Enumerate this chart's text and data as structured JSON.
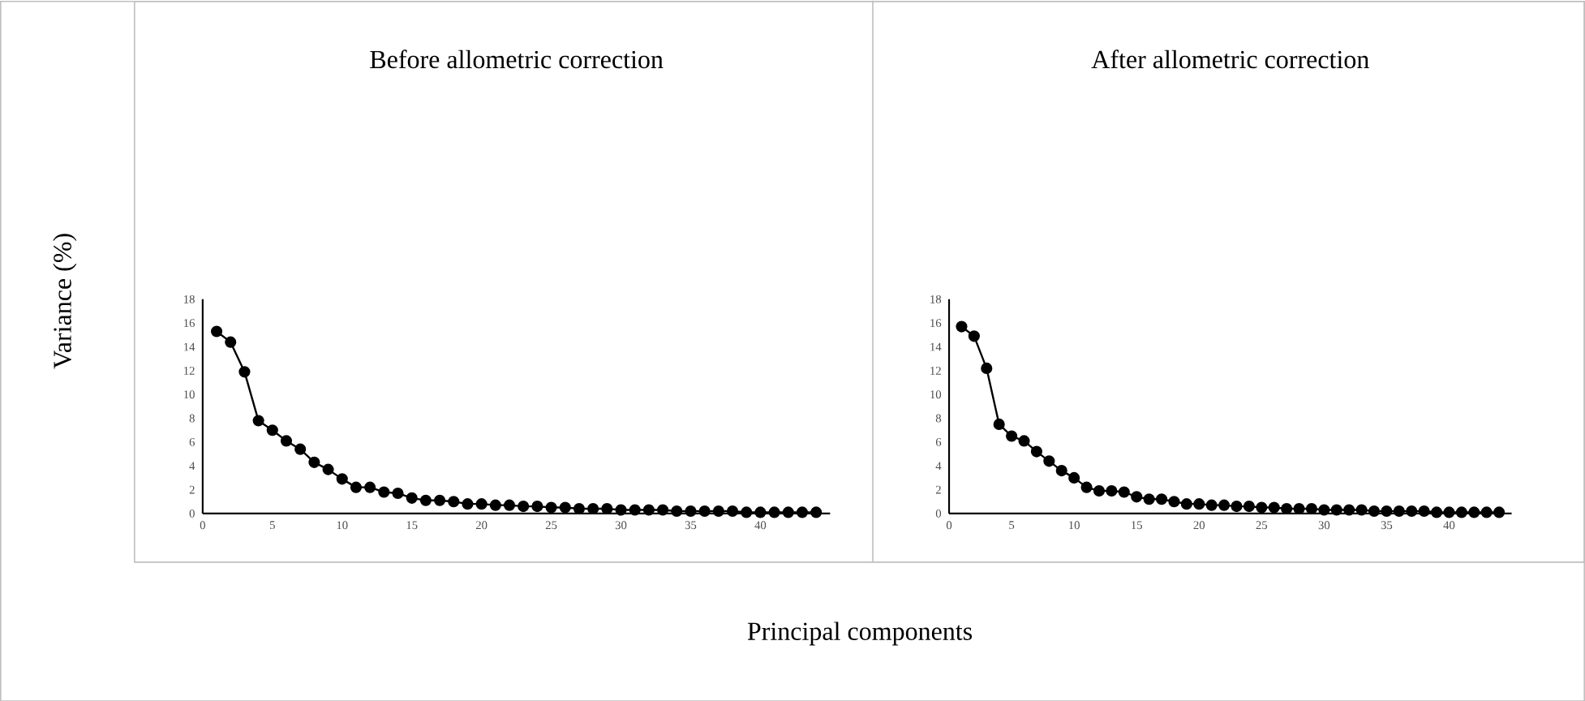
{
  "chart_data": [
    {
      "type": "line",
      "title": "Before allometric correction",
      "ylabel": "Variance (%)",
      "xlabel": "Principal components",
      "x": [
        1,
        2,
        3,
        4,
        5,
        6,
        7,
        8,
        9,
        10,
        11,
        12,
        13,
        14,
        15,
        16,
        17,
        18,
        19,
        20,
        21,
        22,
        23,
        24,
        25,
        26,
        27,
        28,
        29,
        30,
        31,
        32,
        33,
        34,
        35,
        36,
        37,
        38,
        39,
        40,
        41,
        42,
        43,
        44
      ],
      "series": [
        {
          "color": "#000000",
          "values": [
            15.3,
            14.4,
            11.9,
            7.8,
            7.0,
            6.1,
            5.4,
            4.3,
            3.7,
            2.9,
            2.2,
            2.2,
            1.8,
            1.7,
            1.3,
            1.1,
            1.1,
            1.0,
            0.8,
            0.8,
            0.7,
            0.7,
            0.6,
            0.6,
            0.5,
            0.5,
            0.4,
            0.4,
            0.4,
            0.3,
            0.3,
            0.3,
            0.3,
            0.2,
            0.2,
            0.2,
            0.2,
            0.2,
            0.1,
            0.1,
            0.1,
            0.1,
            0.1,
            0.1
          ]
        }
      ],
      "xlim": [
        0,
        45
      ],
      "xticks": [
        0,
        5,
        10,
        15,
        20,
        25,
        30,
        35,
        40
      ],
      "ylim": [
        0,
        18
      ],
      "yticks": [
        0,
        2,
        4,
        6,
        8,
        10,
        12,
        14,
        16,
        18
      ],
      "grid": false,
      "marker": "circle",
      "line_style": "solid"
    },
    {
      "type": "line",
      "title": "After allometric correction",
      "x": [
        1,
        2,
        3,
        4,
        5,
        6,
        7,
        8,
        9,
        10,
        11,
        12,
        13,
        14,
        15,
        16,
        17,
        18,
        19,
        20,
        21,
        22,
        23,
        24,
        25,
        26,
        27,
        28,
        29,
        30,
        31,
        32,
        33,
        34,
        35,
        36,
        37,
        38,
        39,
        40,
        41,
        42,
        43,
        44
      ],
      "series": [
        {
          "color": "#000000",
          "values": [
            15.7,
            14.9,
            12.2,
            7.5,
            6.5,
            6.1,
            5.2,
            4.4,
            3.6,
            3.0,
            2.2,
            1.9,
            1.9,
            1.8,
            1.4,
            1.2,
            1.2,
            1.0,
            0.8,
            0.8,
            0.7,
            0.7,
            0.6,
            0.6,
            0.5,
            0.5,
            0.4,
            0.4,
            0.4,
            0.3,
            0.3,
            0.3,
            0.3,
            0.2,
            0.2,
            0.2,
            0.2,
            0.2,
            0.1,
            0.1,
            0.1,
            0.1,
            0.1,
            0.1
          ]
        }
      ],
      "xlim": [
        0,
        45
      ],
      "xticks": [
        0,
        5,
        10,
        15,
        20,
        25,
        30,
        35,
        40
      ],
      "ylim": [
        0,
        18
      ],
      "yticks": [
        0,
        2,
        4,
        6,
        8,
        10,
        12,
        14,
        16,
        18
      ],
      "grid": false,
      "marker": "circle",
      "line_style": "solid"
    }
  ]
}
